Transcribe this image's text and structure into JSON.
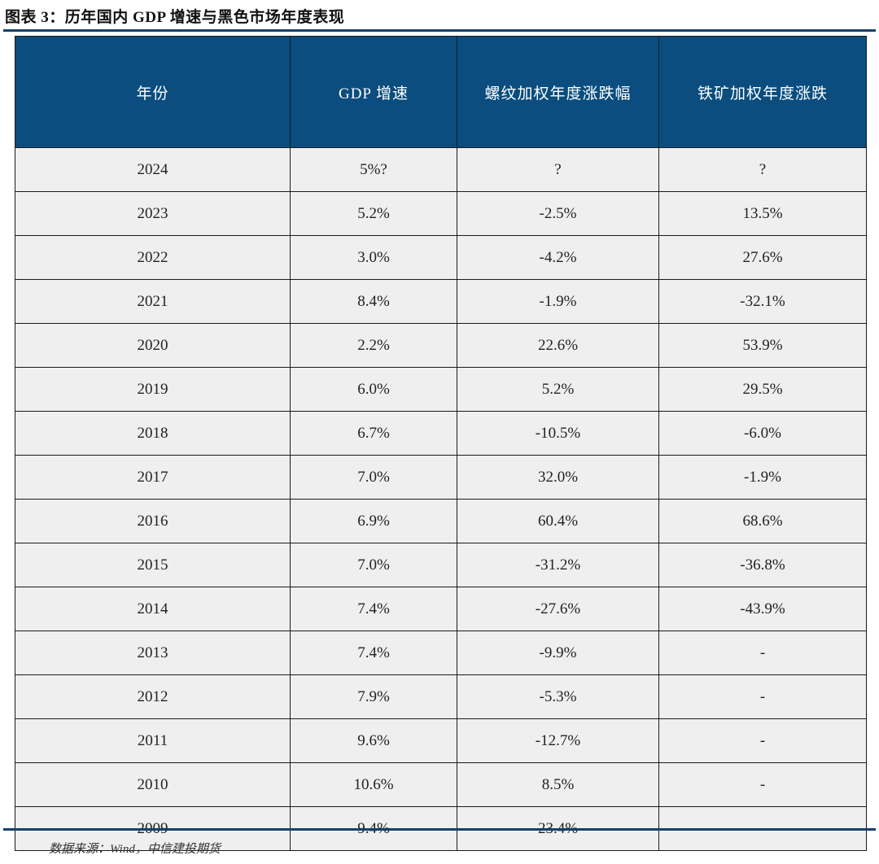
{
  "title": "图表 3：历年国内 GDP 增速与黑色市场年度表现",
  "table": {
    "headers": [
      "年份",
      "GDP 增速",
      "螺纹加权年度涨跌幅",
      "铁矿加权年度涨跌"
    ],
    "rows": [
      [
        "2024",
        "5%?",
        "?",
        "?"
      ],
      [
        "2023",
        "5.2%",
        "-2.5%",
        "13.5%"
      ],
      [
        "2022",
        "3.0%",
        "-4.2%",
        "27.6%"
      ],
      [
        "2021",
        "8.4%",
        "-1.9%",
        "-32.1%"
      ],
      [
        "2020",
        "2.2%",
        "22.6%",
        "53.9%"
      ],
      [
        "2019",
        "6.0%",
        "5.2%",
        "29.5%"
      ],
      [
        "2018",
        "6.7%",
        "-10.5%",
        "-6.0%"
      ],
      [
        "2017",
        "7.0%",
        "32.0%",
        "-1.9%"
      ],
      [
        "2016",
        "6.9%",
        "60.4%",
        "68.6%"
      ],
      [
        "2015",
        "7.0%",
        "-31.2%",
        "-36.8%"
      ],
      [
        "2014",
        "7.4%",
        "-27.6%",
        "-43.9%"
      ],
      [
        "2013",
        "7.4%",
        "-9.9%",
        "-"
      ],
      [
        "2012",
        "7.9%",
        "-5.3%",
        "-"
      ],
      [
        "2011",
        "9.6%",
        "-12.7%",
        "-"
      ],
      [
        "2010",
        "10.6%",
        "8.5%",
        "-"
      ],
      [
        "2009",
        "9.4%",
        "23.4%",
        "-"
      ]
    ]
  },
  "source": "数据来源：Wind，中信建投期货",
  "colors": {
    "header_bg": "#0a4d7e",
    "cell_bg": "#efefef",
    "rule": "#17406b"
  }
}
